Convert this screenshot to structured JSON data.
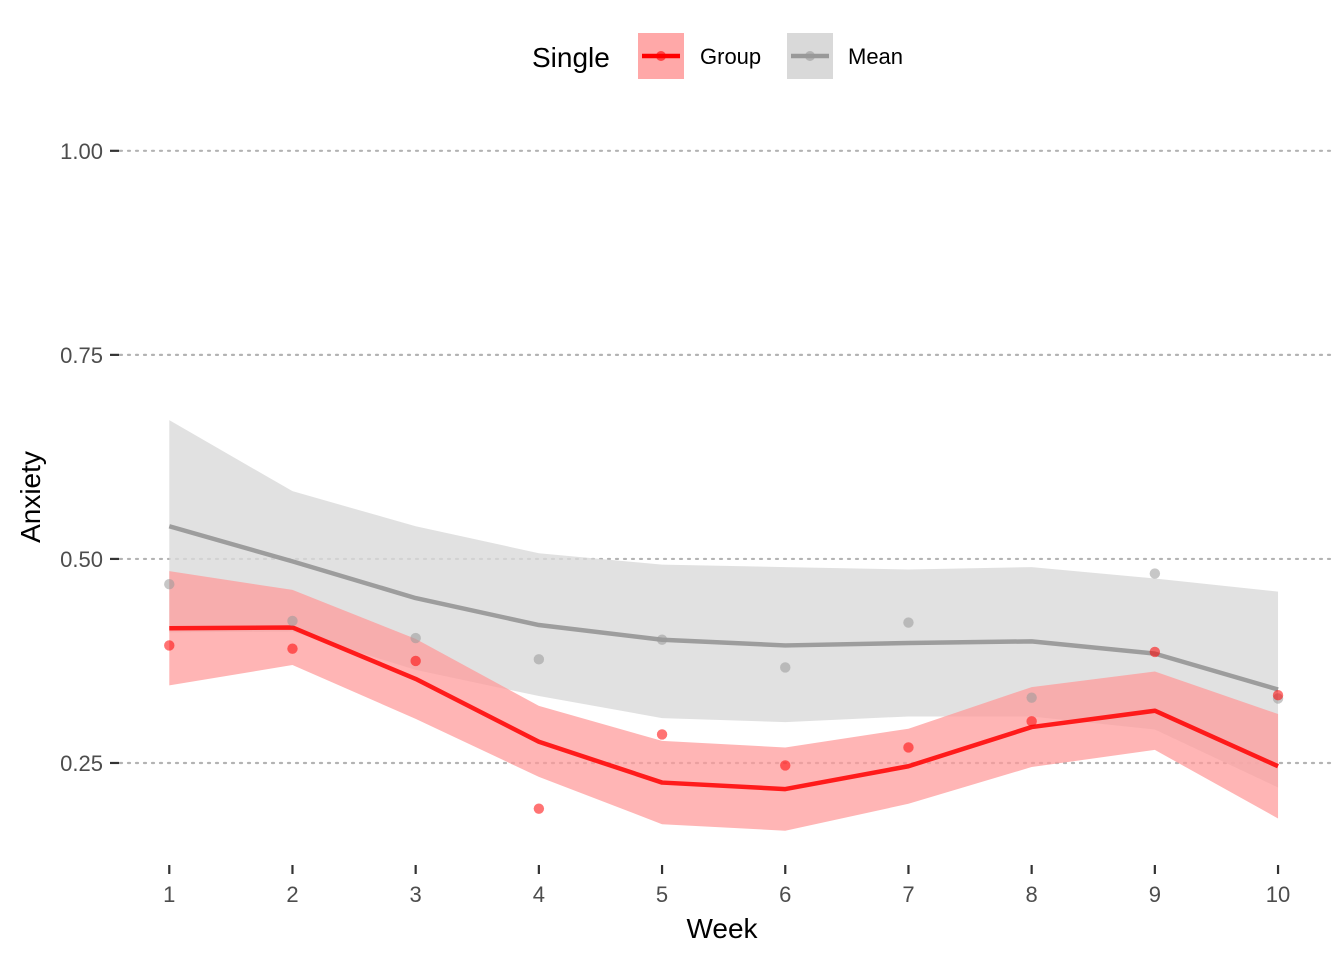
{
  "chart_data": {
    "type": "line",
    "xlabel": "Week",
    "ylabel": "Anxiety",
    "x": [
      1,
      2,
      3,
      4,
      5,
      6,
      7,
      8,
      9,
      10
    ],
    "xlim": [
      0.6,
      10.3
    ],
    "ylim": [
      0.125,
      1.05
    ],
    "yticks": [
      0.25,
      0.5,
      0.75,
      1.0
    ],
    "ytick_labels": [
      "0.25",
      "0.50",
      "0.75",
      "1.00"
    ],
    "grid": "horizontal dotted",
    "legend": {
      "title": "Single",
      "position": "top",
      "entries": [
        "Group",
        "Mean"
      ]
    },
    "series": [
      {
        "name": "Mean",
        "color": "#999999",
        "band_color": "#d9d9d9",
        "fit": [
          0.54,
          0.497,
          0.452,
          0.419,
          0.401,
          0.394,
          0.397,
          0.399,
          0.384,
          0.34
        ],
        "lower": [
          0.41,
          0.411,
          0.364,
          0.332,
          0.305,
          0.3,
          0.307,
          0.307,
          0.291,
          0.22
        ],
        "upper": [
          0.67,
          0.583,
          0.54,
          0.507,
          0.493,
          0.49,
          0.487,
          0.49,
          0.476,
          0.46
        ],
        "points": [
          0.469,
          0.424,
          0.403,
          0.377,
          0.401,
          0.367,
          0.422,
          0.33,
          0.482,
          0.329
        ]
      },
      {
        "name": "Group",
        "color": "#ff0000",
        "band_color": "#ff9999",
        "fit": [
          0.415,
          0.416,
          0.353,
          0.276,
          0.226,
          0.218,
          0.246,
          0.294,
          0.314,
          0.246
        ],
        "lower": [
          0.345,
          0.37,
          0.304,
          0.233,
          0.175,
          0.167,
          0.2,
          0.245,
          0.266,
          0.182
        ],
        "upper": [
          0.485,
          0.462,
          0.402,
          0.32,
          0.277,
          0.269,
          0.292,
          0.343,
          0.362,
          0.31
        ],
        "points": [
          0.394,
          0.39,
          0.375,
          0.194,
          0.285,
          0.247,
          0.269,
          0.301,
          0.386,
          0.333
        ]
      }
    ]
  }
}
